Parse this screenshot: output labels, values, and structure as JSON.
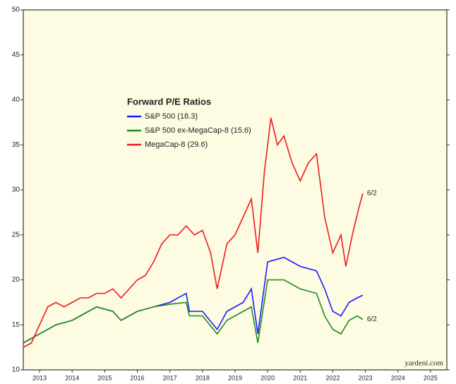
{
  "chart_data": {
    "type": "line",
    "legend_title": "Forward P/E Ratios",
    "source": "yardeni.com",
    "xlim": [
      2013,
      2026
    ],
    "xticks": [
      {
        "value": 2013.5,
        "label": "2013"
      },
      {
        "value": 2014.5,
        "label": "2014"
      },
      {
        "value": 2015.5,
        "label": "2015"
      },
      {
        "value": 2016.5,
        "label": "2016"
      },
      {
        "value": 2017.5,
        "label": "2017"
      },
      {
        "value": 2018.5,
        "label": "2018"
      },
      {
        "value": 2019.5,
        "label": "2019"
      },
      {
        "value": 2020.5,
        "label": "2020"
      },
      {
        "value": 2021.5,
        "label": "2021"
      },
      {
        "value": 2022.5,
        "label": "2022"
      },
      {
        "value": 2023.5,
        "label": "2023"
      },
      {
        "value": 2024.5,
        "label": "2024"
      },
      {
        "value": 2025.5,
        "label": "2025"
      }
    ],
    "ylim": [
      10,
      50
    ],
    "yticks": [
      10,
      15,
      20,
      25,
      30,
      35,
      40,
      45,
      50
    ],
    "series": [
      {
        "name": "S&P 500 (18.3)",
        "color": "#1a1aff",
        "x": [
          2013.0,
          2013.5,
          2014.0,
          2014.5,
          2015.0,
          2015.25,
          2015.75,
          2016.0,
          2016.5,
          2017.0,
          2017.5,
          2018.0,
          2018.1,
          2018.5,
          2018.95,
          2019.25,
          2019.75,
          2020.0,
          2020.2,
          2020.5,
          2021.0,
          2021.5,
          2022.0,
          2022.25,
          2022.5,
          2022.75,
          2023.0,
          2023.25,
          2023.42
        ],
        "values": [
          13,
          14,
          15,
          15.5,
          16.5,
          17,
          16.5,
          15.5,
          16.5,
          17,
          17.5,
          18.5,
          16.5,
          16.5,
          14.5,
          16.5,
          17.5,
          19,
          14,
          22,
          22.5,
          21.5,
          21,
          19,
          16.5,
          16,
          17.5,
          18,
          18.3
        ]
      },
      {
        "name": "S&P 500 ex-MegaCap-8 (15.6)",
        "color": "#1e8c1e",
        "end_label": "6/2",
        "x": [
          2013.0,
          2013.5,
          2014.0,
          2014.5,
          2015.0,
          2015.25,
          2015.75,
          2016.0,
          2016.5,
          2017.0,
          2017.5,
          2018.0,
          2018.1,
          2018.5,
          2018.95,
          2019.25,
          2019.75,
          2020.0,
          2020.2,
          2020.5,
          2021.0,
          2021.5,
          2022.0,
          2022.25,
          2022.5,
          2022.75,
          2023.0,
          2023.25,
          2023.42
        ],
        "values": [
          13,
          14,
          15,
          15.5,
          16.5,
          17,
          16.5,
          15.5,
          16.5,
          17,
          17.3,
          17.5,
          16,
          16,
          14,
          15.5,
          16.5,
          17,
          13,
          20,
          20,
          19,
          18.5,
          16,
          14.5,
          14,
          15.5,
          16,
          15.6
        ]
      },
      {
        "name": "MegaCap-8 (29.6)",
        "color": "#ee1c1c",
        "end_label": "6/2",
        "x": [
          2013.0,
          2013.25,
          2013.5,
          2013.75,
          2014.0,
          2014.25,
          2014.5,
          2014.75,
          2015.0,
          2015.25,
          2015.5,
          2015.75,
          2016.0,
          2016.25,
          2016.5,
          2016.75,
          2017.0,
          2017.25,
          2017.5,
          2017.75,
          2018.0,
          2018.25,
          2018.5,
          2018.75,
          2018.95,
          2019.25,
          2019.5,
          2019.75,
          2020.0,
          2020.2,
          2020.4,
          2020.6,
          2020.8,
          2021.0,
          2021.25,
          2021.5,
          2021.75,
          2022.0,
          2022.25,
          2022.5,
          2022.75,
          2022.9,
          2023.1,
          2023.3,
          2023.42
        ],
        "values": [
          12.5,
          13,
          15,
          17,
          17.5,
          17,
          17.5,
          18,
          18,
          18.5,
          18.5,
          19,
          18,
          19,
          20,
          20.5,
          22,
          24,
          25,
          25,
          26,
          25,
          25.5,
          23,
          19,
          24,
          25,
          27,
          29,
          23,
          32,
          38,
          35,
          36,
          33,
          31,
          33,
          34,
          27,
          23,
          25,
          21.5,
          25,
          28,
          29.6
        ]
      }
    ]
  }
}
